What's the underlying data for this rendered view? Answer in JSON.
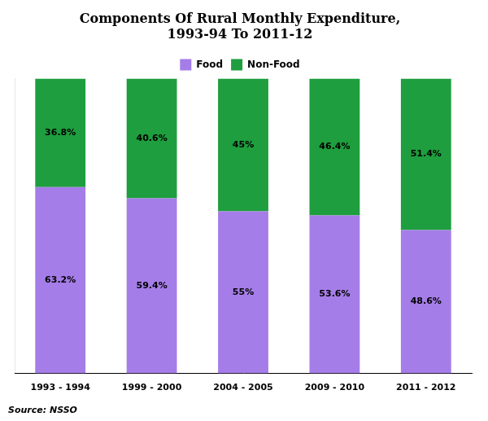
{
  "chart_data": {
    "type": "bar",
    "title": "Components Of Rural Monthly Expenditure,\n1993-94 To 2011-12",
    "annotation": "Source: NSSO",
    "categories": [
      "1993 - 1994",
      "1999 - 2000",
      "2004 - 2005",
      "2009 - 2010",
      "2011 - 2012"
    ],
    "series": [
      {
        "name": "Food",
        "color": "#a57de8",
        "values": [
          63.2,
          59.4,
          55.0,
          53.6,
          48.6
        ],
        "value_labels": [
          "63.2%",
          "59.4%",
          "55%",
          "53.6%",
          "48.6%"
        ]
      },
      {
        "name": "Non-Food",
        "color": "#1e9e3e",
        "values": [
          36.8,
          40.6,
          45.0,
          46.4,
          51.4
        ],
        "value_labels": [
          "36.8%",
          "40.6%",
          "45%",
          "46.4%",
          "51.4%"
        ]
      }
    ],
    "stacked": true,
    "data_labels": true,
    "ylim": [
      0,
      100
    ],
    "tick_labels": "x",
    "grid": false,
    "legend": "top"
  }
}
